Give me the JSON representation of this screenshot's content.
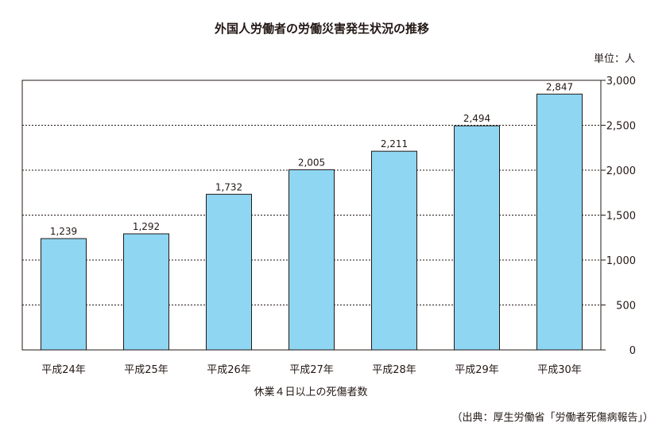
{
  "chart_data": {
    "type": "bar",
    "title": "外国人労働者の労働災害発生状況の推移",
    "unit_label": "単位：人",
    "xlabel": "休業４日以上の死傷者数",
    "ylabel": "",
    "source": "（出典：厚生労働省「労働者死傷病報告」）",
    "categories": [
      "平成24年",
      "平成25年",
      "平成26年",
      "平成27年",
      "平成28年",
      "平成29年",
      "平成30年"
    ],
    "values": [
      1239,
      1292,
      1732,
      2005,
      2211,
      2494,
      2847
    ],
    "value_labels": [
      "1,239",
      "1,292",
      "1,732",
      "2,005",
      "2,211",
      "2,494",
      "2,847"
    ],
    "ylim": [
      0,
      3000
    ],
    "yticks": [
      0,
      500,
      1000,
      1500,
      2000,
      2500,
      3000
    ],
    "ytick_labels": [
      "0",
      "500",
      "1,000",
      "1,500",
      "2,000",
      "2,500",
      "3,000"
    ],
    "y_axis_side": "right",
    "grid": "dotted horizontal",
    "bar_color": "#8fd6f3",
    "bar_edge_color": "#231815"
  }
}
